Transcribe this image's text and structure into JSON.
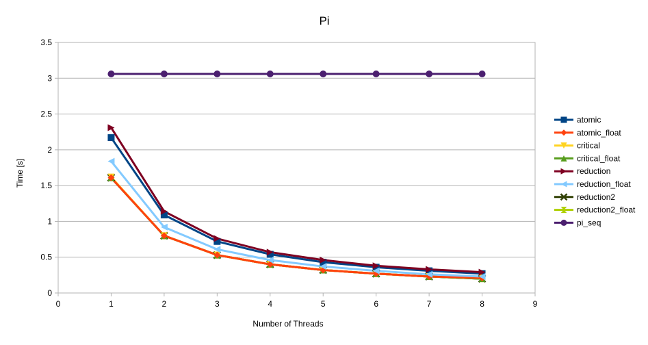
{
  "chart_data": {
    "type": "line",
    "title": "Pi",
    "xlabel": "Number of Threads",
    "ylabel": "Time [s]",
    "xlim": [
      0,
      9
    ],
    "ylim": [
      0,
      3.5
    ],
    "x_ticks": [
      "0",
      "1",
      "2",
      "3",
      "4",
      "5",
      "6",
      "7",
      "8",
      "9"
    ],
    "y_ticks": [
      "0",
      "0.5",
      "1",
      "1.5",
      "2",
      "2.5",
      "3",
      "3.5"
    ],
    "grid": "horizontal",
    "legend_position": "right",
    "x": [
      1,
      2,
      3,
      4,
      5,
      6,
      7,
      8
    ],
    "series": [
      {
        "name": "atomic",
        "color": "#004586",
        "marker": "square",
        "values": [
          2.17,
          1.09,
          0.72,
          0.54,
          0.43,
          0.36,
          0.31,
          0.27
        ]
      },
      {
        "name": "reduction2_float",
        "color": "#aecf00",
        "marker": "bowtie",
        "values": [
          1.61,
          0.8,
          0.53,
          0.4,
          0.32,
          0.27,
          0.23,
          0.2
        ]
      },
      {
        "name": "reduction2",
        "color": "#314004",
        "marker": "x",
        "values": [
          1.61,
          0.8,
          0.53,
          0.4,
          0.32,
          0.27,
          0.23,
          0.2
        ]
      },
      {
        "name": "critical_float",
        "color": "#579d1c",
        "marker": "triangle-up",
        "values": [
          1.61,
          0.8,
          0.53,
          0.4,
          0.32,
          0.27,
          0.23,
          0.2
        ]
      },
      {
        "name": "critical",
        "color": "#ffd320",
        "marker": "triangle-down",
        "values": [
          1.62,
          0.8,
          0.53,
          0.4,
          0.32,
          0.27,
          0.23,
          0.21
        ]
      },
      {
        "name": "atomic_float",
        "color": "#ff420e",
        "marker": "diamond",
        "values": [
          1.61,
          0.8,
          0.53,
          0.4,
          0.32,
          0.27,
          0.23,
          0.21
        ]
      },
      {
        "name": "reduction_float",
        "color": "#83caff",
        "marker": "triangle-left",
        "values": [
          1.84,
          0.92,
          0.61,
          0.46,
          0.37,
          0.31,
          0.26,
          0.23
        ]
      },
      {
        "name": "reduction",
        "color": "#7e0021",
        "marker": "triangle-right",
        "values": [
          2.31,
          1.14,
          0.76,
          0.57,
          0.46,
          0.38,
          0.33,
          0.29
        ]
      },
      {
        "name": "pi_seq",
        "color": "#4b1f6f",
        "marker": "circle",
        "values": [
          3.06,
          3.06,
          3.06,
          3.06,
          3.06,
          3.06,
          3.06,
          3.06
        ]
      }
    ],
    "legend_order": [
      "atomic",
      "atomic_float",
      "critical",
      "critical_float",
      "reduction",
      "reduction_float",
      "reduction2",
      "reduction2_float",
      "pi_seq"
    ]
  }
}
